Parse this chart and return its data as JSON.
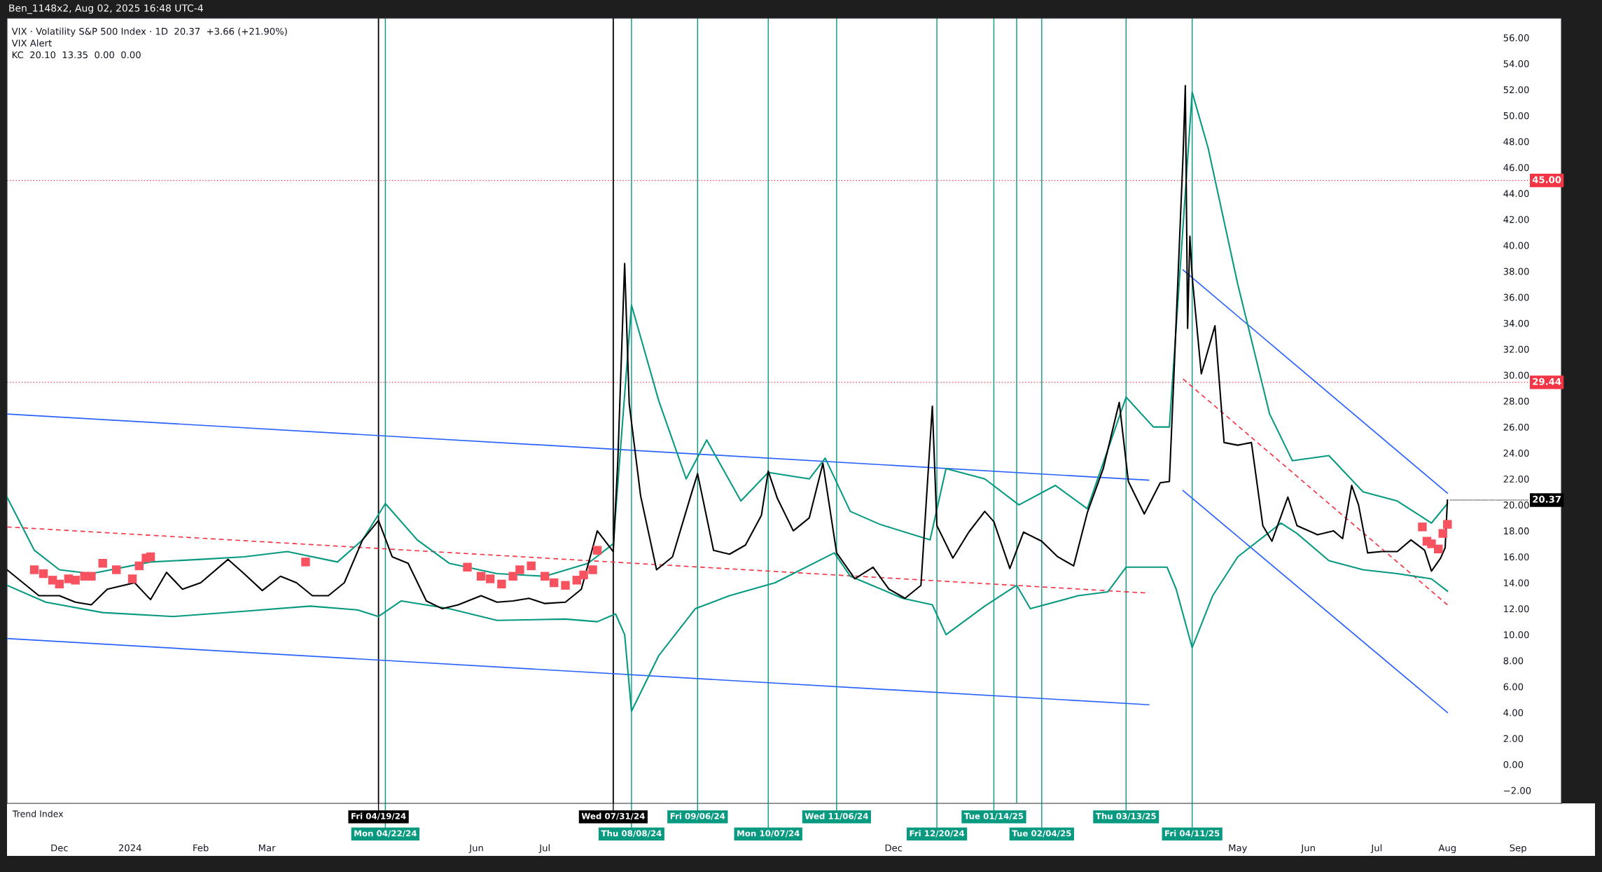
{
  "chart_data": {
    "type": "line",
    "title": "Ben_1148x2, Aug 02, 2025 16:48 UTC-4",
    "annotations": [
      "VIX · Volatility S&P 500 Index · 1D  20.37  +3.66 (+21.90%)",
      "VIX Alert",
      "KC  20.10  13.35  0.00  0.00",
      "Trend Index",
      {
        "text": "20.37",
        "x": "2025-08-01",
        "y": 20.37
      }
    ],
    "xlim": [
      "2023-11-08",
      "2025-09-20"
    ],
    "xticks": [
      {
        "value": "2023-12-01",
        "label": "Dec"
      },
      {
        "value": "2024-01-01",
        "label": "2024"
      },
      {
        "value": "2024-02-01",
        "label": "Feb"
      },
      {
        "value": "2024-03-01",
        "label": "Mar"
      },
      {
        "value": "2024-06-01",
        "label": "Jun"
      },
      {
        "value": "2024-07-01",
        "label": "Jul"
      },
      {
        "value": "2024-12-01",
        "label": "Dec"
      },
      {
        "value": "2025-05-01",
        "label": "May"
      },
      {
        "value": "2025-06-01",
        "label": "Jun"
      },
      {
        "value": "2025-07-01",
        "label": "Jul"
      },
      {
        "value": "2025-08-01",
        "label": "Aug"
      },
      {
        "value": "2025-09-01",
        "label": "Sep"
      }
    ],
    "ylim": [
      -3,
      57.5
    ],
    "yticks": [
      {
        "value": -2,
        "label": "−2.00"
      },
      {
        "value": 0,
        "label": "0.00"
      },
      {
        "value": 2,
        "label": "2.00"
      },
      {
        "value": 4,
        "label": "4.00"
      },
      {
        "value": 6,
        "label": "6.00"
      },
      {
        "value": 8,
        "label": "8.00"
      },
      {
        "value": 10,
        "label": "10.00"
      },
      {
        "value": 12,
        "label": "12.00"
      },
      {
        "value": 14,
        "label": "14.00"
      },
      {
        "value": 16,
        "label": "16.00"
      },
      {
        "value": 18,
        "label": "18.00"
      },
      {
        "value": 20,
        "label": "20.00"
      },
      {
        "value": 22,
        "label": "22.00"
      },
      {
        "value": 24,
        "label": "24.00"
      },
      {
        "value": 26,
        "label": "26.00"
      },
      {
        "value": 28,
        "label": "28.00"
      },
      {
        "value": 30,
        "label": "30.00"
      },
      {
        "value": 32,
        "label": "32.00"
      },
      {
        "value": 34,
        "label": "34.00"
      },
      {
        "value": 36,
        "label": "36.00"
      },
      {
        "value": 38,
        "label": "38.00"
      },
      {
        "value": 40,
        "label": "40.00"
      },
      {
        "value": 42,
        "label": "42.00"
      },
      {
        "value": 44,
        "label": "44.00"
      },
      {
        "value": 46,
        "label": "46.00"
      },
      {
        "value": 48,
        "label": "48.00"
      },
      {
        "value": 50,
        "label": "50.00"
      },
      {
        "value": 52,
        "label": "52.00"
      },
      {
        "value": 54,
        "label": "54.00"
      },
      {
        "value": 56,
        "label": "56.00"
      }
    ],
    "grid": false,
    "legend": false,
    "ref_lines": [
      {
        "axis": "y",
        "value": 45,
        "label": "45.00",
        "color": "#f23645",
        "line_style": "dotted"
      },
      {
        "axis": "y",
        "value": 29.44,
        "label": "29.44",
        "color": "#f23645",
        "line_style": "dotted"
      },
      {
        "axis": "x",
        "value": "2024-04-19",
        "label": "Fri 04/19/24",
        "color": "#000000"
      },
      {
        "axis": "x",
        "value": "2024-04-22",
        "label": "Mon 04/22/24",
        "color": "#089981"
      },
      {
        "axis": "x",
        "value": "2024-07-31",
        "label": "Wed 07/31/24",
        "color": "#000000"
      },
      {
        "axis": "x",
        "value": "2024-08-08",
        "label": "Thu 08/08/24",
        "color": "#089981"
      },
      {
        "axis": "x",
        "value": "2024-09-06",
        "label": "Fri 09/06/24",
        "color": "#089981"
      },
      {
        "axis": "x",
        "value": "2024-10-07",
        "label": "Mon 10/07/24",
        "color": "#089981"
      },
      {
        "axis": "x",
        "value": "2024-11-06",
        "label": "Wed 11/06/24",
        "color": "#089981"
      },
      {
        "axis": "x",
        "value": "2024-12-20",
        "label": "Fri 12/20/24",
        "color": "#089981"
      },
      {
        "axis": "x",
        "value": "2025-01-14",
        "label": "Tue 01/14/25",
        "color": "#089981"
      },
      {
        "axis": "x",
        "value": "2025-01-24",
        "label": null,
        "color": "#089981"
      },
      {
        "axis": "x",
        "value": "2025-02-04",
        "label": "Tue 02/04/25",
        "color": "#089981"
      },
      {
        "axis": "x",
        "value": "2025-03-13",
        "label": "Thu 03/13/25",
        "color": "#089981"
      },
      {
        "axis": "x",
        "value": "2025-04-11",
        "label": "Fri 04/11/25",
        "color": "#089981"
      }
    ],
    "series": [
      {
        "color": "#2962ff",
        "x": [
          "2023-11-08",
          "2025-03-23"
        ],
        "values": [
          27.0,
          21.9
        ]
      },
      {
        "color": "#2962ff",
        "x": [
          "2023-11-08",
          "2025-03-23"
        ],
        "values": [
          9.7,
          4.6
        ]
      },
      {
        "color": "#f23645",
        "line_style": "dashed",
        "x": [
          "2023-11-08",
          "2025-03-23"
        ],
        "values": [
          18.3,
          13.2
        ]
      },
      {
        "color": "#2962ff",
        "x": [
          "2025-04-07",
          "2025-08-01"
        ],
        "values": [
          38.1,
          20.9
        ]
      },
      {
        "color": "#2962ff",
        "x": [
          "2025-04-07",
          "2025-08-01"
        ],
        "values": [
          21.1,
          4.0
        ]
      },
      {
        "color": "#f23645",
        "line_style": "dashed",
        "x": [
          "2025-04-07",
          "2025-08-01"
        ],
        "values": [
          29.7,
          12.3
        ]
      },
      {
        "color": "#089981",
        "x": [
          "2023-11-08",
          "2023-11-20",
          "2023-12-01",
          "2023-12-15",
          "2024-01-10",
          "2024-02-01",
          "2024-02-20",
          "2024-03-10",
          "2024-04-01",
          "2024-04-12",
          "2024-04-22",
          "2024-05-06",
          "2024-05-20",
          "2024-06-10",
          "2024-07-01",
          "2024-07-20",
          "2024-07-31",
          "2024-08-08",
          "2024-08-20",
          "2024-09-01",
          "2024-09-10",
          "2024-09-25",
          "2024-10-07",
          "2024-10-25",
          "2024-11-01",
          "2024-11-12",
          "2024-11-25",
          "2024-12-17",
          "2024-12-24",
          "2025-01-10",
          "2025-01-25",
          "2025-02-10",
          "2025-02-24",
          "2025-03-13",
          "2025-03-25",
          "2025-04-01",
          "2025-04-11",
          "2025-04-18",
          "2025-05-01",
          "2025-05-15",
          "2025-05-25",
          "2025-06-10",
          "2025-06-25",
          "2025-07-10",
          "2025-07-25",
          "2025-08-01"
        ],
        "values": [
          20.6,
          16.5,
          15.0,
          14.7,
          15.6,
          15.8,
          16.0,
          16.4,
          15.6,
          17.3,
          20.1,
          17.3,
          15.5,
          14.7,
          14.5,
          15.5,
          17.0,
          35.4,
          28.0,
          22.0,
          25.0,
          20.3,
          22.5,
          22.0,
          23.6,
          19.5,
          18.5,
          17.3,
          22.8,
          22.0,
          20.0,
          21.5,
          19.7,
          28.3,
          26.0,
          26.0,
          51.8,
          47.5,
          37.0,
          27.0,
          23.4,
          23.8,
          21.0,
          20.3,
          18.6,
          20.1
        ]
      },
      {
        "color": "#089981",
        "x": [
          "2023-11-08",
          "2023-11-25",
          "2023-12-20",
          "2024-01-20",
          "2024-02-20",
          "2024-03-20",
          "2024-04-10",
          "2024-04-19",
          "2024-04-29",
          "2024-05-20",
          "2024-06-10",
          "2024-07-10",
          "2024-07-24",
          "2024-08-01",
          "2024-08-05",
          "2024-08-08",
          "2024-08-20",
          "2024-09-05",
          "2024-09-20",
          "2024-10-10",
          "2024-11-05",
          "2024-11-12",
          "2024-12-05",
          "2024-12-18",
          "2024-12-24",
          "2025-01-10",
          "2025-01-24",
          "2025-01-30",
          "2025-02-20",
          "2025-03-05",
          "2025-03-13",
          "2025-03-31",
          "2025-04-04",
          "2025-04-11",
          "2025-04-20",
          "2025-05-01",
          "2025-05-12",
          "2025-05-20",
          "2025-05-27",
          "2025-06-10",
          "2025-06-25",
          "2025-07-10",
          "2025-07-25",
          "2025-08-01"
        ],
        "values": [
          13.8,
          12.5,
          11.7,
          11.4,
          11.8,
          12.2,
          11.9,
          11.4,
          12.6,
          12.0,
          11.1,
          11.2,
          11.0,
          11.6,
          10.0,
          4.1,
          8.4,
          12.0,
          13.0,
          14.0,
          16.3,
          14.5,
          12.8,
          12.3,
          10.0,
          12.2,
          13.8,
          12.0,
          13.0,
          13.3,
          15.2,
          15.2,
          13.5,
          9.0,
          13.0,
          16.0,
          17.5,
          18.6,
          17.8,
          15.7,
          15.0,
          14.7,
          14.3,
          13.35
        ]
      },
      {
        "color": "#000000",
        "x": [
          "2023-11-08",
          "2023-11-15",
          "2023-11-22",
          "2023-12-01",
          "2023-12-08",
          "2023-12-15",
          "2023-12-22",
          "2024-01-03",
          "2024-01-10",
          "2024-01-17",
          "2024-01-24",
          "2024-02-01",
          "2024-02-13",
          "2024-02-20",
          "2024-02-28",
          "2024-03-07",
          "2024-03-14",
          "2024-03-21",
          "2024-03-28",
          "2024-04-04",
          "2024-04-12",
          "2024-04-19",
          "2024-04-25",
          "2024-05-02",
          "2024-05-10",
          "2024-05-17",
          "2024-05-24",
          "2024-06-03",
          "2024-06-10",
          "2024-06-17",
          "2024-06-24",
          "2024-07-01",
          "2024-07-10",
          "2024-07-17",
          "2024-07-24",
          "2024-07-31",
          "2024-08-02",
          "2024-08-05",
          "2024-08-07",
          "2024-08-12",
          "2024-08-19",
          "2024-08-26",
          "2024-09-03",
          "2024-09-06",
          "2024-09-13",
          "2024-09-20",
          "2024-09-27",
          "2024-10-04",
          "2024-10-07",
          "2024-10-11",
          "2024-10-18",
          "2024-10-25",
          "2024-10-31",
          "2024-11-06",
          "2024-11-14",
          "2024-11-22",
          "2024-11-29",
          "2024-12-06",
          "2024-12-13",
          "2024-12-18",
          "2024-12-20",
          "2024-12-27",
          "2025-01-03",
          "2025-01-10",
          "2025-01-14",
          "2025-01-21",
          "2025-01-27",
          "2025-02-04",
          "2025-02-11",
          "2025-02-18",
          "2025-02-24",
          "2025-03-03",
          "2025-03-10",
          "2025-03-14",
          "2025-03-21",
          "2025-03-28",
          "2025-04-01",
          "2025-04-03",
          "2025-04-07",
          "2025-04-08",
          "2025-04-09",
          "2025-04-10",
          "2025-04-11",
          "2025-04-15",
          "2025-04-21",
          "2025-04-25",
          "2025-05-01",
          "2025-05-07",
          "2025-05-12",
          "2025-05-16",
          "2025-05-23",
          "2025-05-27",
          "2025-06-05",
          "2025-06-12",
          "2025-06-16",
          "2025-06-20",
          "2025-06-23",
          "2025-06-27",
          "2025-07-03",
          "2025-07-10",
          "2025-07-16",
          "2025-07-22",
          "2025-07-25",
          "2025-07-29",
          "2025-07-31",
          "2025-08-01"
        ],
        "values": [
          15.0,
          14.0,
          13.0,
          13.0,
          12.5,
          12.3,
          13.5,
          14.0,
          12.7,
          14.8,
          13.5,
          14.0,
          15.8,
          14.7,
          13.4,
          14.5,
          14.0,
          13.0,
          13.0,
          14.0,
          17.3,
          18.8,
          16.0,
          15.5,
          12.6,
          12.0,
          12.3,
          13.0,
          12.5,
          12.6,
          12.8,
          12.4,
          12.5,
          13.5,
          18.0,
          16.4,
          23.4,
          38.6,
          27.8,
          20.7,
          15.0,
          16.0,
          20.7,
          22.4,
          16.5,
          16.2,
          16.9,
          19.2,
          22.6,
          20.5,
          18.0,
          19.0,
          23.2,
          16.3,
          14.3,
          15.2,
          13.5,
          12.8,
          13.8,
          27.6,
          18.4,
          15.9,
          17.9,
          19.5,
          18.7,
          15.1,
          17.9,
          17.2,
          16.0,
          15.3,
          19.4,
          22.8,
          27.9,
          21.8,
          19.3,
          21.7,
          21.8,
          30.0,
          46.9,
          52.3,
          33.6,
          40.7,
          37.6,
          30.1,
          33.8,
          24.8,
          24.6,
          24.8,
          18.4,
          17.2,
          20.6,
          18.4,
          17.7,
          18.0,
          17.4,
          21.5,
          20.0,
          16.3,
          16.4,
          16.4,
          17.3,
          16.5,
          14.9,
          15.9,
          16.7,
          20.37
        ]
      },
      {
        "type": "scatter",
        "marker": "square",
        "color": "#f7525f",
        "x": [
          "2023-11-20",
          "2023-11-24",
          "2023-11-28",
          "2023-12-01",
          "2023-12-05",
          "2023-12-08",
          "2023-12-12",
          "2023-12-15",
          "2023-12-20",
          "2023-12-26",
          "2024-01-02",
          "2024-01-05",
          "2024-01-08",
          "2024-01-10",
          "2024-03-18",
          "2024-05-28",
          "2024-06-03",
          "2024-06-07",
          "2024-06-12",
          "2024-06-17",
          "2024-06-20",
          "2024-06-25",
          "2024-07-01",
          "2024-07-05",
          "2024-07-10",
          "2024-07-15",
          "2024-07-18",
          "2024-07-22",
          "2024-07-24",
          "2025-07-21",
          "2025-07-23",
          "2025-07-25",
          "2025-07-28",
          "2025-07-30",
          "2025-08-01"
        ],
        "values": [
          15.0,
          14.7,
          14.2,
          13.9,
          14.3,
          14.2,
          14.5,
          14.5,
          15.5,
          15.0,
          14.3,
          15.3,
          15.9,
          16.0,
          15.6,
          15.2,
          14.5,
          14.3,
          13.9,
          14.5,
          15.0,
          15.3,
          14.5,
          14.0,
          13.8,
          14.2,
          14.6,
          15.0,
          16.5,
          18.3,
          17.2,
          17.0,
          16.6,
          17.8,
          18.5
        ]
      }
    ]
  }
}
